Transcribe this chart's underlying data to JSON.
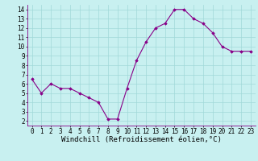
{
  "x": [
    0,
    1,
    2,
    3,
    4,
    5,
    6,
    7,
    8,
    9,
    10,
    11,
    12,
    13,
    14,
    15,
    16,
    17,
    18,
    19,
    20,
    21,
    22,
    23
  ],
  "y": [
    6.5,
    5.0,
    6.0,
    5.5,
    5.5,
    5.0,
    4.5,
    4.0,
    2.2,
    2.2,
    5.5,
    8.5,
    10.5,
    12.0,
    12.5,
    14.0,
    14.0,
    13.0,
    12.5,
    11.5,
    10.0,
    9.5,
    9.5,
    9.5
  ],
  "line_color": "#880088",
  "marker": "D",
  "marker_size": 1.8,
  "line_width": 0.8,
  "bg_color": "#c8f0f0",
  "grid_color": "#a0d8d8",
  "xlabel": "Windchill (Refroidissement éolien,°C)",
  "xlim": [
    -0.5,
    23.5
  ],
  "ylim": [
    1.5,
    14.5
  ],
  "yticks": [
    2,
    3,
    4,
    5,
    6,
    7,
    8,
    9,
    10,
    11,
    12,
    13,
    14
  ],
  "xticks": [
    0,
    1,
    2,
    3,
    4,
    5,
    6,
    7,
    8,
    9,
    10,
    11,
    12,
    13,
    14,
    15,
    16,
    17,
    18,
    19,
    20,
    21,
    22,
    23
  ],
  "tick_fontsize": 5.5,
  "xlabel_fontsize": 6.5
}
